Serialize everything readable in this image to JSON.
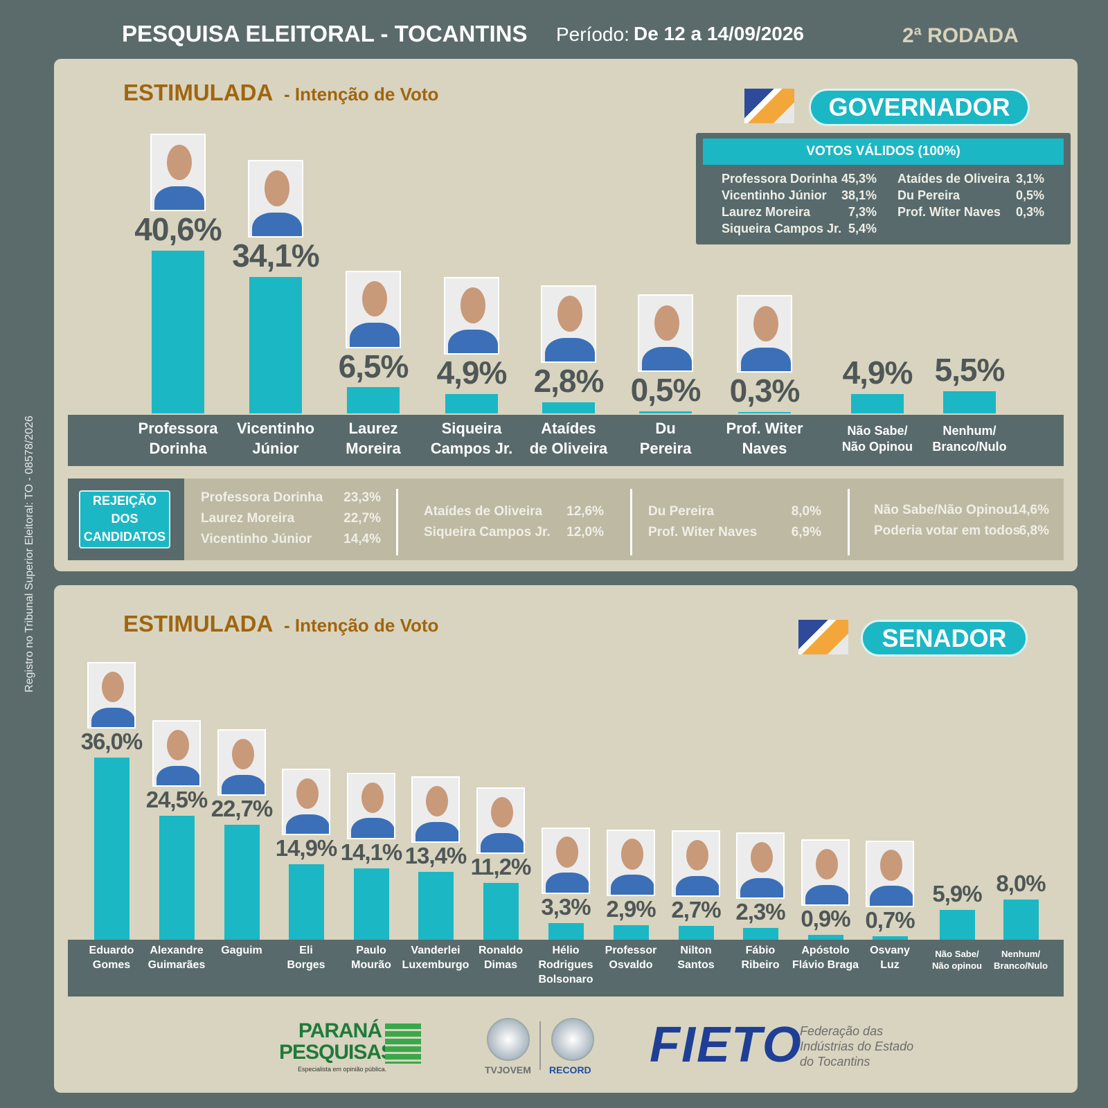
{
  "header": {
    "title": "PESQUISA ELEITORAL - TOCANTINS",
    "period_label": "Período:",
    "period": "De 12 a 14/09/2026",
    "round": "2ª RODADA"
  },
  "side_note": "Registro no Tribunal Superior Eleitoral: TO - 08578/2026",
  "chart_data": [
    {
      "type": "bar",
      "title": "ESTIMULADA",
      "subtitle": "- Intenção de Voto",
      "office": "GOVERNADOR",
      "color": "#1bb7c4",
      "categories": [
        "Professora\nDorinha",
        "Vicentinho\nJúnior",
        "Laurez\nMoreira",
        "Siqueira\nCampos Jr.",
        "Ataídes\nde Oliveira",
        "Du\nPereira",
        "Prof. Witer\nNaves",
        "Não Sabe/\nNão Opinou",
        "Nenhum/\nBranco/Nulo"
      ],
      "values": [
        40.6,
        34.1,
        6.5,
        4.9,
        2.8,
        0.5,
        0.3,
        4.9,
        5.5
      ],
      "value_labels": [
        "40,6%",
        "34,1%",
        "6,5%",
        "4,9%",
        "2,8%",
        "0,5%",
        "0,3%",
        "4,9%",
        "5,5%"
      ],
      "ylim": [
        0,
        50
      ]
    },
    {
      "type": "bar",
      "title": "ESTIMULADA",
      "subtitle": "- Intenção de Voto",
      "office": "SENADOR",
      "color": "#1bb7c4",
      "categories": [
        "Eduardo\nGomes",
        "Alexandre\nGuimarães",
        "Gaguim",
        "Eli\nBorges",
        "Paulo\nMourão",
        "Vanderlei\nLuxemburgo",
        "Ronaldo\nDimas",
        "Hélio\nRodrigues\nBolsonaro",
        "Professor\nOsvaldo",
        "Nilton\nSantos",
        "Fábio\nRibeiro",
        "Apóstolo\nFlávio Braga",
        "Osvany\nLuz",
        "Não Sabe/\nNão opinou",
        "Nenhum/\nBranco/Nulo"
      ],
      "values": [
        36.0,
        24.5,
        22.7,
        14.9,
        14.1,
        13.4,
        11.2,
        3.3,
        2.9,
        2.7,
        2.3,
        0.9,
        0.7,
        5.9,
        8.0
      ],
      "value_labels": [
        "36,0%",
        "24,5%",
        "22,7%",
        "14,9%",
        "14,1%",
        "13,4%",
        "11,2%",
        "3,3%",
        "2,9%",
        "2,7%",
        "2,3%",
        "0,9%",
        "0,7%",
        "5,9%",
        "8,0%"
      ],
      "ylim": [
        0,
        40
      ]
    }
  ],
  "valid_votes": {
    "title": "VOTOS VÁLIDOS (100%)",
    "rows": [
      [
        "Professora Dorinha",
        "45,3%"
      ],
      [
        "Vicentinho Júnior",
        "38,1%"
      ],
      [
        "Laurez Moreira",
        "7,3%"
      ],
      [
        "Siqueira Campos Jr.",
        "5,4%"
      ],
      [
        "Ataídes de Oliveira",
        "3,1%"
      ],
      [
        "Du Pereira",
        "0,5%"
      ],
      [
        "Prof. Witer Naves",
        "0,3%"
      ]
    ]
  },
  "rejection": {
    "title": "REJEIÇÃO\nDOS\nCANDIDATOS",
    "groups": [
      [
        [
          "Professora Dorinha",
          "23,3%"
        ],
        [
          "Laurez Moreira",
          "22,7%"
        ],
        [
          "Vicentinho Júnior",
          "14,4%"
        ]
      ],
      [
        [
          "Ataídes de Oliveira",
          "12,6%"
        ],
        [
          "Siqueira Campos Jr.",
          "12,0%"
        ]
      ],
      [
        [
          "Du Pereira",
          "8,0%"
        ],
        [
          "Prof. Witer Naves",
          "6,9%"
        ]
      ],
      [
        [
          "Não Sabe/Não Opinou",
          "14,6%"
        ],
        [
          "Poderia votar em todos",
          "6,8%"
        ]
      ]
    ]
  },
  "footer": {
    "pollster": "PARANÁ\nPESQUISAS",
    "pollster_tagline": "Especialista em opinião pública.",
    "tv1": "TVJOVEM",
    "tv2": "RECORD",
    "fieto": "FIETO",
    "fieto_name": "Federação das\nIndústrias do Estado\ndo Tocantins"
  }
}
